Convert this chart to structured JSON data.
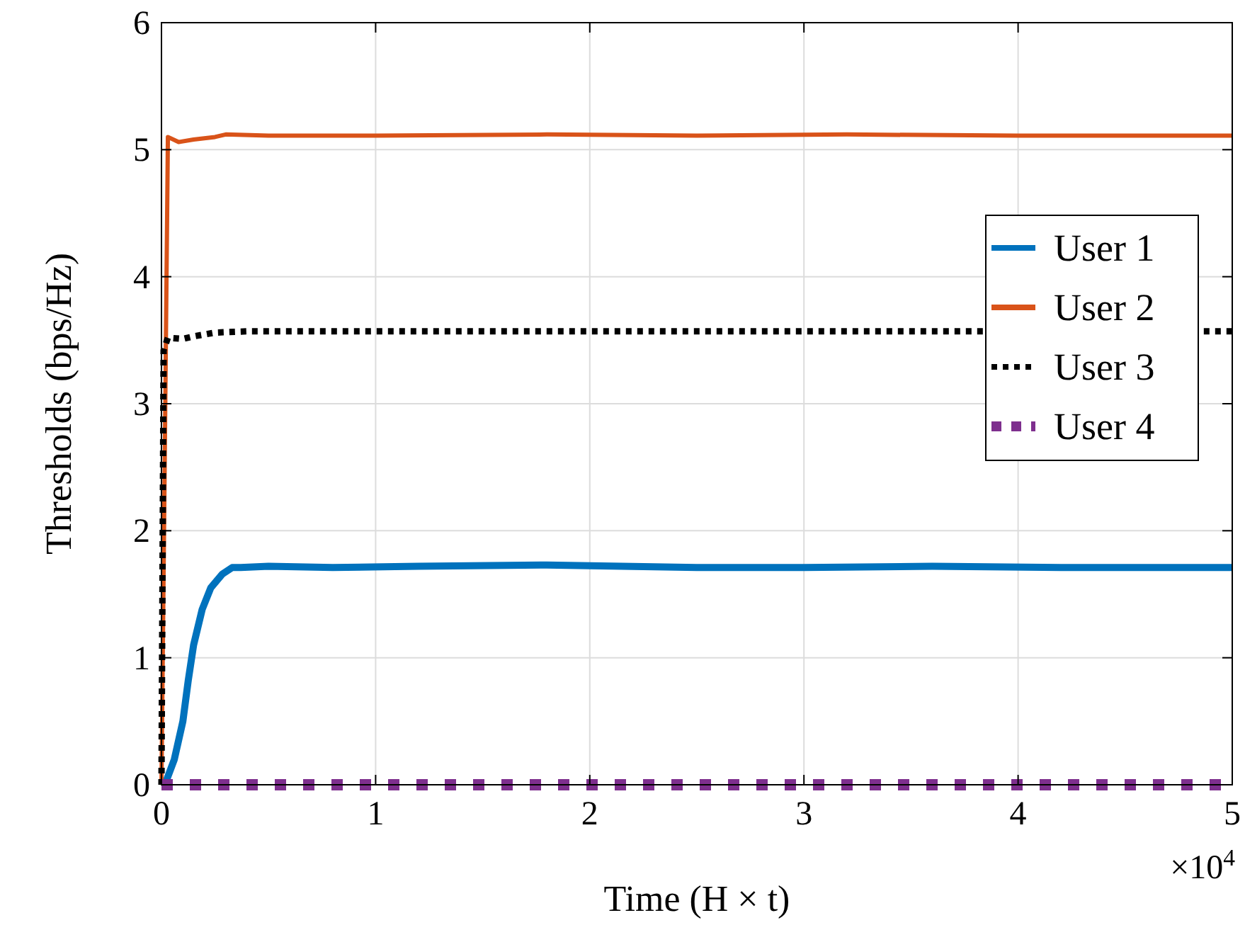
{
  "chart_data": {
    "type": "line",
    "xlabel": "Time (H × t)",
    "ylabel": "Thresholds (bps/Hz)",
    "xlim": [
      0,
      5
    ],
    "ylim": [
      0,
      6
    ],
    "xticks": [
      0,
      1,
      2,
      3,
      4,
      5
    ],
    "yticks": [
      0,
      1,
      2,
      3,
      4,
      5,
      6
    ],
    "annotations": [
      "×10$^{4}$"
    ],
    "grid": true,
    "legend": "right",
    "series": [
      {
        "name": "User 1",
        "color": "#0072bd",
        "line_style": "solid",
        "x": [
          0,
          0.02,
          0.06,
          0.1,
          0.125,
          0.15,
          0.19,
          0.23,
          0.285,
          0.33,
          0.37,
          0.5,
          0.8,
          1.2,
          1.8,
          2.5,
          3.0,
          3.6,
          4.2,
          5.0
        ],
        "values": [
          0,
          0.02,
          0.2,
          0.5,
          0.82,
          1.1,
          1.38,
          1.55,
          1.66,
          1.71,
          1.71,
          1.72,
          1.71,
          1.72,
          1.73,
          1.71,
          1.71,
          1.72,
          1.71,
          1.71
        ]
      },
      {
        "name": "User 2",
        "color": "#d95319",
        "line_style": "solid",
        "x": [
          0,
          0.015,
          0.03,
          0.08,
          0.15,
          0.25,
          0.3,
          0.5,
          1.0,
          1.8,
          2.5,
          3.2,
          4.0,
          5.0
        ],
        "values": [
          0,
          2.5,
          5.1,
          5.06,
          5.08,
          5.1,
          5.12,
          5.11,
          5.11,
          5.12,
          5.11,
          5.12,
          5.11,
          5.11
        ]
      },
      {
        "name": "User 3",
        "color": "#000000",
        "line_style": "dotted",
        "x": [
          0,
          0.01,
          0.03,
          0.1,
          0.15,
          0.25,
          0.4,
          0.8,
          1.5,
          2.5,
          3.5,
          5.0
        ],
        "values": [
          0,
          3.42,
          3.52,
          3.51,
          3.53,
          3.56,
          3.57,
          3.57,
          3.57,
          3.57,
          3.57,
          3.57
        ]
      },
      {
        "name": "User 4",
        "color": "#7e2f8e",
        "line_style": "dotted",
        "x": [
          0,
          5
        ],
        "values": [
          0,
          0
        ]
      }
    ]
  }
}
